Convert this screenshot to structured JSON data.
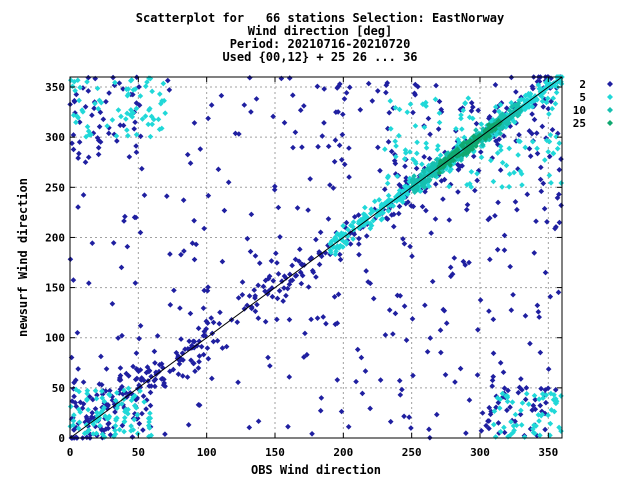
{
  "header": {
    "line1": "Scatterplot for   66 stations Selection: EastNorway",
    "line2": "Wind direction [deg]",
    "line3": "Period: 20210716-20210720",
    "line4": "Used {00,12} + 25 26 ... 36"
  },
  "chart_data": {
    "type": "scatter",
    "title": "Scatterplot for   66 stations Selection: EastNorway",
    "xlabel": "OBS Wind direction",
    "ylabel": "newsurf Wind direction",
    "xlim": [
      0,
      360
    ],
    "ylim": [
      0,
      360
    ],
    "xticks": [
      0,
      50,
      100,
      150,
      200,
      250,
      300,
      350
    ],
    "yticks": [
      0,
      50,
      100,
      150,
      200,
      250,
      300,
      350
    ],
    "grid": true,
    "legend_position": "right",
    "reference_line": "y = x",
    "series": [
      {
        "name": "2",
        "color": "#1f1fa0",
        "marker": "diamond"
      },
      {
        "name": "5",
        "color": "#20d8d8",
        "marker": "diamond"
      },
      {
        "name": "10",
        "color": "#16c0b0",
        "marker": "diamond"
      },
      {
        "name": "25",
        "color": "#10a870",
        "marker": "diamond"
      }
    ]
  }
}
